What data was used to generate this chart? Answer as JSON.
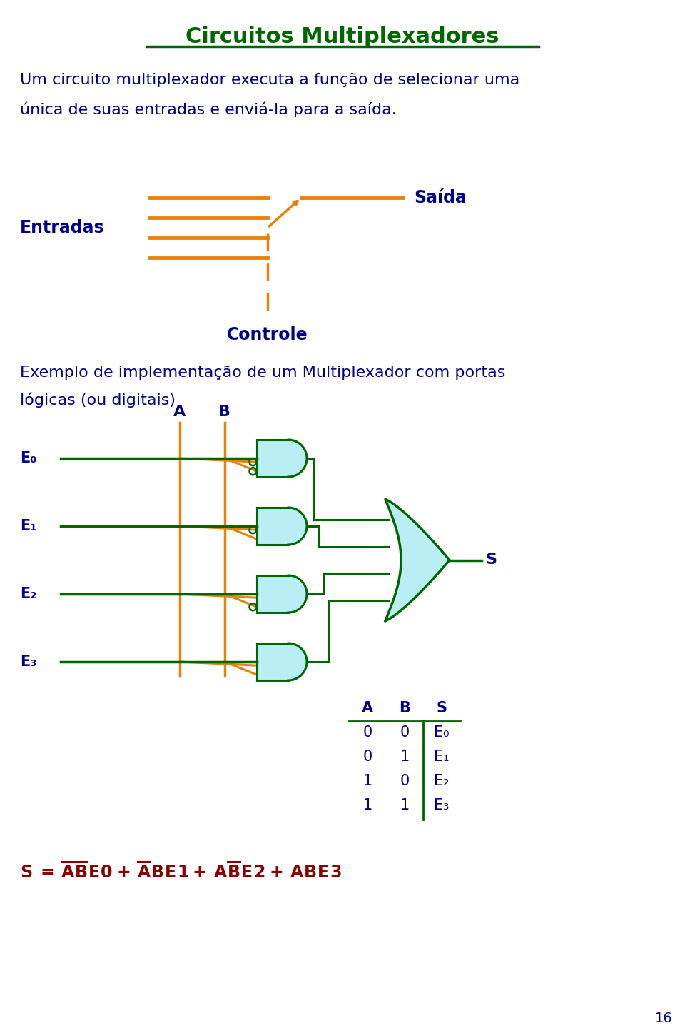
{
  "title": "Circuitos Multiplexadores",
  "title_color": "#006600",
  "text_color": "#00008B",
  "orange": "#E8820A",
  "green": "#006600",
  "light_blue": "#B8EEF4",
  "formula_color": "#8B0000",
  "bg": "#FFFFFF",
  "page": "16",
  "para1_line1": "Um circuito multiplexador executa a função de selecionar uma",
  "para1_line2": "única de suas entradas e enviá-la para a saída.",
  "para2_line1": "Exemplo de implementação de um Multiplexador com portas",
  "para2_line2": "lógicas (ou digitais)"
}
